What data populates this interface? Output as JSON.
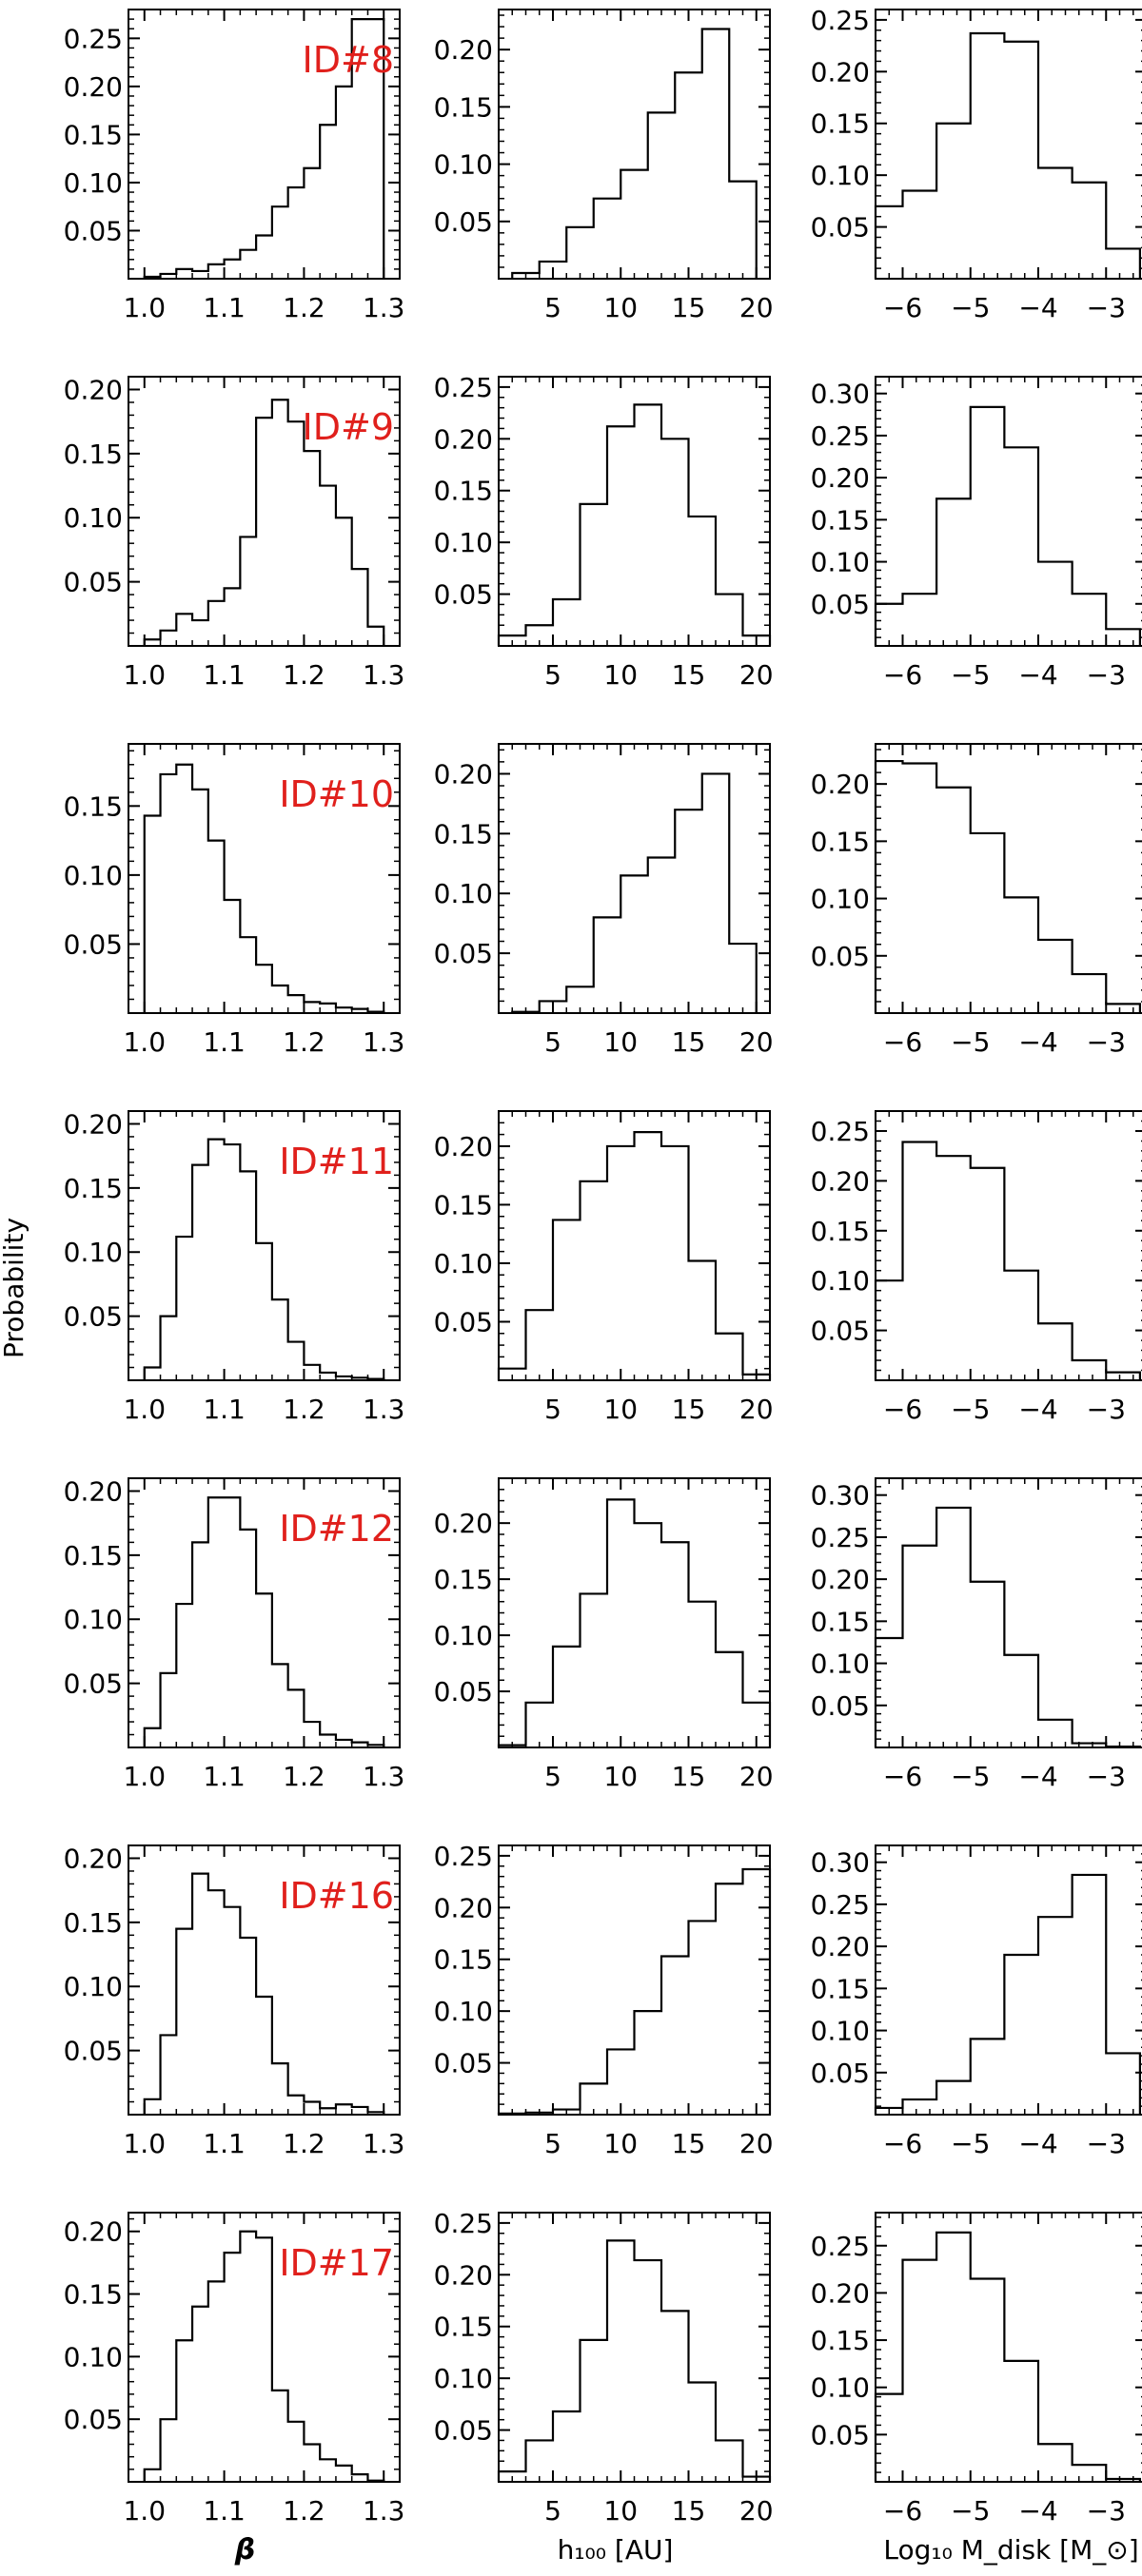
{
  "figure": {
    "ylabel": "Probability",
    "col_xlabels": [
      "β",
      "h₁₀₀ [AU]",
      "Log₁₀ M_disk [M_⊙]"
    ],
    "id_color": "#e0201c",
    "line_color": "#000000"
  },
  "chart_data": [
    {
      "type": "histogram",
      "panel_id": "ID#8",
      "param": "beta",
      "x_range": [
        0.98,
        1.32
      ],
      "y_range": [
        0,
        0.28
      ],
      "x_ticks": [
        "1.0",
        "1.1",
        "1.2",
        "1.3"
      ],
      "y_ticks": [
        "0.05",
        "0.10",
        "0.15",
        "0.20",
        "0.25"
      ],
      "edges": [
        1.0,
        1.02,
        1.04,
        1.06,
        1.08,
        1.1,
        1.12,
        1.14,
        1.16,
        1.18,
        1.2,
        1.22,
        1.24,
        1.26,
        1.28,
        1.3
      ],
      "values": [
        0.002,
        0.005,
        0.01,
        0.008,
        0.015,
        0.02,
        0.03,
        0.045,
        0.075,
        0.095,
        0.115,
        0.16,
        0.2,
        0.27,
        0.27
      ]
    },
    {
      "type": "histogram",
      "panel_id": "",
      "param": "h100",
      "x_range": [
        1,
        21
      ],
      "y_range": [
        0,
        0.235
      ],
      "x_ticks": [
        "5",
        "10",
        "15",
        "20"
      ],
      "y_ticks": [
        "0.05",
        "0.10",
        "0.15",
        "0.20"
      ],
      "edges": [
        2,
        4,
        6,
        8,
        10,
        12,
        14,
        16,
        18,
        20
      ],
      "values": [
        0.005,
        0.015,
        0.045,
        0.07,
        0.095,
        0.145,
        0.18,
        0.218,
        0.085
      ]
    },
    {
      "type": "histogram",
      "panel_id": "",
      "param": "log_mdisk",
      "x_range": [
        -6.4,
        -2.4
      ],
      "y_range": [
        0,
        0.26
      ],
      "x_ticks": [
        "−6",
        "−5",
        "−4",
        "−3"
      ],
      "y_ticks": [
        "0.05",
        "0.10",
        "0.15",
        "0.20",
        "0.25"
      ],
      "edges": [
        -6.4,
        -6.0,
        -5.5,
        -5.0,
        -4.5,
        -4.0,
        -3.5,
        -3.0,
        -2.5
      ],
      "values": [
        0.07,
        0.085,
        0.15,
        0.237,
        0.229,
        0.107,
        0.093,
        0.029
      ]
    },
    {
      "type": "histogram",
      "panel_id": "ID#9",
      "param": "beta",
      "x_range": [
        0.98,
        1.32
      ],
      "y_range": [
        0,
        0.21
      ],
      "x_ticks": [
        "1.0",
        "1.1",
        "1.2",
        "1.3"
      ],
      "y_ticks": [
        "0.05",
        "0.10",
        "0.15",
        "0.20"
      ],
      "edges": [
        1.0,
        1.02,
        1.04,
        1.06,
        1.08,
        1.1,
        1.12,
        1.14,
        1.16,
        1.18,
        1.2,
        1.22,
        1.24,
        1.26,
        1.28,
        1.3
      ],
      "values": [
        0.005,
        0.012,
        0.025,
        0.02,
        0.035,
        0.045,
        0.085,
        0.178,
        0.192,
        0.175,
        0.152,
        0.125,
        0.1,
        0.06,
        0.015
      ]
    },
    {
      "type": "histogram",
      "panel_id": "",
      "param": "h100",
      "x_range": [
        1,
        21
      ],
      "y_range": [
        0,
        0.26
      ],
      "x_ticks": [
        "5",
        "10",
        "15",
        "20"
      ],
      "y_ticks": [
        "0.05",
        "0.10",
        "0.15",
        "0.20",
        "0.25"
      ],
      "edges": [
        1,
        3,
        5,
        7,
        9,
        11,
        13,
        15,
        17,
        19,
        21
      ],
      "values": [
        0.01,
        0.02,
        0.045,
        0.137,
        0.212,
        0.233,
        0.2,
        0.125,
        0.05,
        0.01
      ]
    },
    {
      "type": "histogram",
      "panel_id": "",
      "param": "log_mdisk",
      "x_range": [
        -6.4,
        -2.4
      ],
      "y_range": [
        0,
        0.32
      ],
      "x_ticks": [
        "−6",
        "−5",
        "−4",
        "−3"
      ],
      "y_ticks": [
        "0.05",
        "0.10",
        "0.15",
        "0.20",
        "0.25",
        "0.30"
      ],
      "edges": [
        -6.4,
        -6.0,
        -5.5,
        -5.0,
        -4.5,
        -4.0,
        -3.5,
        -3.0,
        -2.5
      ],
      "values": [
        0.05,
        0.062,
        0.175,
        0.284,
        0.236,
        0.1,
        0.062,
        0.02
      ]
    },
    {
      "type": "histogram",
      "panel_id": "ID#10",
      "param": "beta",
      "x_range": [
        0.98,
        1.32
      ],
      "y_range": [
        0,
        0.195
      ],
      "x_ticks": [
        "1.0",
        "1.1",
        "1.2",
        "1.3"
      ],
      "y_ticks": [
        "0.05",
        "0.10",
        "0.15"
      ],
      "edges": [
        1.0,
        1.02,
        1.04,
        1.06,
        1.08,
        1.1,
        1.12,
        1.14,
        1.16,
        1.18,
        1.2,
        1.22,
        1.24,
        1.26,
        1.28,
        1.3
      ],
      "values": [
        0.143,
        0.173,
        0.18,
        0.162,
        0.125,
        0.082,
        0.055,
        0.035,
        0.02,
        0.013,
        0.008,
        0.007,
        0.004,
        0.003,
        0.001
      ]
    },
    {
      "type": "histogram",
      "panel_id": "",
      "param": "h100",
      "x_range": [
        1,
        21
      ],
      "y_range": [
        0,
        0.225
      ],
      "x_ticks": [
        "5",
        "10",
        "15",
        "20"
      ],
      "y_ticks": [
        "0.05",
        "0.10",
        "0.15",
        "0.20"
      ],
      "edges": [
        2,
        4,
        6,
        8,
        10,
        12,
        14,
        16,
        18,
        20
      ],
      "values": [
        0.001,
        0.01,
        0.022,
        0.08,
        0.115,
        0.13,
        0.17,
        0.2,
        0.058
      ]
    },
    {
      "type": "histogram",
      "panel_id": "",
      "param": "log_mdisk",
      "x_range": [
        -6.4,
        -2.4
      ],
      "y_range": [
        0,
        0.235
      ],
      "x_ticks": [
        "−6",
        "−5",
        "−4",
        "−3"
      ],
      "y_ticks": [
        "0.05",
        "0.10",
        "0.15",
        "0.20"
      ],
      "edges": [
        -6.4,
        -6.0,
        -5.5,
        -5.0,
        -4.5,
        -4.0,
        -3.5,
        -3.0,
        -2.5
      ],
      "values": [
        0.22,
        0.218,
        0.197,
        0.157,
        0.101,
        0.064,
        0.034,
        0.008
      ]
    },
    {
      "type": "histogram",
      "panel_id": "ID#11",
      "param": "beta",
      "x_range": [
        0.98,
        1.32
      ],
      "y_range": [
        0,
        0.21
      ],
      "x_ticks": [
        "1.0",
        "1.1",
        "1.2",
        "1.3"
      ],
      "y_ticks": [
        "0.05",
        "0.10",
        "0.15",
        "0.20"
      ],
      "edges": [
        1.0,
        1.02,
        1.04,
        1.06,
        1.08,
        1.1,
        1.12,
        1.14,
        1.16,
        1.18,
        1.2,
        1.22,
        1.24,
        1.26,
        1.28,
        1.3
      ],
      "values": [
        0.01,
        0.05,
        0.112,
        0.168,
        0.188,
        0.184,
        0.163,
        0.107,
        0.063,
        0.03,
        0.012,
        0.006,
        0.003,
        0.002,
        0.001
      ]
    },
    {
      "type": "histogram",
      "panel_id": "",
      "param": "h100",
      "x_range": [
        1,
        21
      ],
      "y_range": [
        0,
        0.23
      ],
      "x_ticks": [
        "5",
        "10",
        "15",
        "20"
      ],
      "y_ticks": [
        "0.05",
        "0.10",
        "0.15",
        "0.20"
      ],
      "edges": [
        1,
        3,
        5,
        7,
        9,
        11,
        13,
        15,
        17,
        19,
        21
      ],
      "values": [
        0.01,
        0.06,
        0.137,
        0.17,
        0.2,
        0.212,
        0.2,
        0.102,
        0.04,
        0.005
      ]
    },
    {
      "type": "histogram",
      "panel_id": "",
      "param": "log_mdisk",
      "x_range": [
        -6.4,
        -2.4
      ],
      "y_range": [
        0,
        0.27
      ],
      "x_ticks": [
        "−6",
        "−5",
        "−4",
        "−3"
      ],
      "y_ticks": [
        "0.05",
        "0.10",
        "0.15",
        "0.20",
        "0.25"
      ],
      "edges": [
        -6.4,
        -6.0,
        -5.5,
        -5.0,
        -4.5,
        -4.0,
        -3.5,
        -3.0,
        -2.5
      ],
      "values": [
        0.1,
        0.239,
        0.225,
        0.213,
        0.11,
        0.057,
        0.02,
        0.008
      ]
    },
    {
      "type": "histogram",
      "panel_id": "ID#12",
      "param": "beta",
      "x_range": [
        0.98,
        1.32
      ],
      "y_range": [
        0,
        0.21
      ],
      "x_ticks": [
        "1.0",
        "1.1",
        "1.2",
        "1.3"
      ],
      "y_ticks": [
        "0.05",
        "0.10",
        "0.15",
        "0.20"
      ],
      "edges": [
        1.0,
        1.02,
        1.04,
        1.06,
        1.08,
        1.1,
        1.12,
        1.14,
        1.16,
        1.18,
        1.2,
        1.22,
        1.24,
        1.26,
        1.28,
        1.3
      ],
      "values": [
        0.015,
        0.058,
        0.112,
        0.16,
        0.195,
        0.195,
        0.17,
        0.12,
        0.065,
        0.045,
        0.02,
        0.01,
        0.006,
        0.004,
        0.002
      ]
    },
    {
      "type": "histogram",
      "panel_id": "",
      "param": "h100",
      "x_range": [
        1,
        21
      ],
      "y_range": [
        0,
        0.24
      ],
      "x_ticks": [
        "5",
        "10",
        "15",
        "20"
      ],
      "y_ticks": [
        "0.05",
        "0.10",
        "0.15",
        "0.20"
      ],
      "edges": [
        1,
        3,
        5,
        7,
        9,
        11,
        13,
        15,
        17,
        19,
        21
      ],
      "values": [
        0.002,
        0.04,
        0.09,
        0.137,
        0.221,
        0.2,
        0.183,
        0.13,
        0.085,
        0.04
      ]
    },
    {
      "type": "histogram",
      "panel_id": "",
      "param": "log_mdisk",
      "x_range": [
        -6.4,
        -2.4
      ],
      "y_range": [
        0,
        0.32
      ],
      "x_ticks": [
        "−6",
        "−5",
        "−4",
        "−3"
      ],
      "y_ticks": [
        "0.05",
        "0.10",
        "0.15",
        "0.20",
        "0.25",
        "0.30"
      ],
      "edges": [
        -6.4,
        -6.0,
        -5.5,
        -5.0,
        -4.5,
        -4.0,
        -3.5,
        -3.0,
        -2.5
      ],
      "values": [
        0.13,
        0.24,
        0.285,
        0.197,
        0.11,
        0.033,
        0.005,
        0.001
      ]
    },
    {
      "type": "histogram",
      "panel_id": "ID#16",
      "param": "beta",
      "x_range": [
        0.98,
        1.32
      ],
      "y_range": [
        0,
        0.21
      ],
      "x_ticks": [
        "1.0",
        "1.1",
        "1.2",
        "1.3"
      ],
      "y_ticks": [
        "0.05",
        "0.10",
        "0.15",
        "0.20"
      ],
      "edges": [
        1.0,
        1.02,
        1.04,
        1.06,
        1.08,
        1.1,
        1.12,
        1.14,
        1.16,
        1.18,
        1.2,
        1.22,
        1.24,
        1.26,
        1.28,
        1.3
      ],
      "values": [
        0.012,
        0.062,
        0.145,
        0.188,
        0.175,
        0.162,
        0.138,
        0.092,
        0.04,
        0.015,
        0.01,
        0.005,
        0.008,
        0.006,
        0.002
      ]
    },
    {
      "type": "histogram",
      "panel_id": "",
      "param": "h100",
      "x_range": [
        1,
        21
      ],
      "y_range": [
        0,
        0.26
      ],
      "x_ticks": [
        "5",
        "10",
        "15",
        "20"
      ],
      "y_ticks": [
        "0.05",
        "0.10",
        "0.15",
        "0.20",
        "0.25"
      ],
      "edges": [
        1,
        3,
        5,
        7,
        9,
        11,
        13,
        15,
        17,
        19,
        21
      ],
      "values": [
        0.001,
        0.002,
        0.005,
        0.03,
        0.063,
        0.1,
        0.153,
        0.187,
        0.223,
        0.237
      ]
    },
    {
      "type": "histogram",
      "panel_id": "",
      "param": "log_mdisk",
      "x_range": [
        -6.4,
        -2.4
      ],
      "y_range": [
        0,
        0.32
      ],
      "x_ticks": [
        "−6",
        "−5",
        "−4",
        "−3"
      ],
      "y_ticks": [
        "0.05",
        "0.10",
        "0.15",
        "0.20",
        "0.25",
        "0.30"
      ],
      "edges": [
        -6.4,
        -6.0,
        -5.5,
        -5.0,
        -4.5,
        -4.0,
        -3.5,
        -3.0,
        -2.5
      ],
      "values": [
        0.008,
        0.018,
        0.04,
        0.09,
        0.19,
        0.235,
        0.285,
        0.073
      ]
    },
    {
      "type": "histogram",
      "panel_id": "ID#17",
      "param": "beta",
      "x_range": [
        0.98,
        1.32
      ],
      "y_range": [
        0,
        0.215
      ],
      "x_ticks": [
        "1.0",
        "1.1",
        "1.2",
        "1.3"
      ],
      "y_ticks": [
        "0.05",
        "0.10",
        "0.15",
        "0.20"
      ],
      "edges": [
        1.0,
        1.02,
        1.04,
        1.06,
        1.08,
        1.1,
        1.12,
        1.14,
        1.16,
        1.18,
        1.2,
        1.22,
        1.24,
        1.26,
        1.28,
        1.3
      ],
      "values": [
        0.01,
        0.05,
        0.113,
        0.14,
        0.16,
        0.183,
        0.2,
        0.195,
        0.073,
        0.048,
        0.03,
        0.018,
        0.013,
        0.006,
        0.001
      ]
    },
    {
      "type": "histogram",
      "panel_id": "",
      "param": "h100",
      "x_range": [
        1,
        21
      ],
      "y_range": [
        0,
        0.26
      ],
      "x_ticks": [
        "5",
        "10",
        "15",
        "20"
      ],
      "y_ticks": [
        "0.05",
        "0.10",
        "0.15",
        "0.20",
        "0.25"
      ],
      "edges": [
        1,
        3,
        5,
        7,
        9,
        11,
        13,
        15,
        17,
        19,
        21
      ],
      "values": [
        0.01,
        0.04,
        0.068,
        0.137,
        0.233,
        0.214,
        0.165,
        0.096,
        0.04,
        0.005
      ]
    },
    {
      "type": "histogram",
      "panel_id": "",
      "param": "log_mdisk",
      "x_range": [
        -6.4,
        -2.4
      ],
      "y_range": [
        0,
        0.285
      ],
      "x_ticks": [
        "−6",
        "−5",
        "−4",
        "−3"
      ],
      "y_ticks": [
        "0.05",
        "0.10",
        "0.15",
        "0.20",
        "0.25"
      ],
      "edges": [
        -6.4,
        -6.0,
        -5.5,
        -5.0,
        -4.5,
        -4.0,
        -3.5,
        -3.0,
        -2.5
      ],
      "values": [
        0.093,
        0.235,
        0.264,
        0.215,
        0.128,
        0.04,
        0.018,
        0.003
      ]
    }
  ]
}
